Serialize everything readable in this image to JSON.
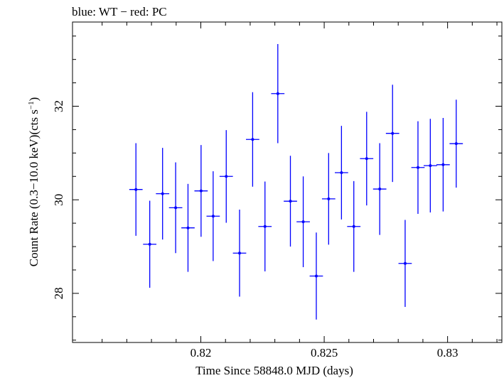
{
  "chart_data": {
    "type": "scatter",
    "title": "blue: WT − red: PC",
    "xlabel": "Time Since 58848.0 MJD (days)",
    "ylabel_main": "Count Rate (0.3−10.0 keV)(cts s",
    "ylabel_sup": "−1",
    "ylabel_end": ")",
    "xlim": [
      0.8148,
      0.8322
    ],
    "ylim": [
      26.95,
      33.8
    ],
    "x_ticks": [
      {
        "value": 0.82,
        "label": "0.82"
      },
      {
        "value": 0.825,
        "label": "0.825"
      },
      {
        "value": 0.83,
        "label": "0.83"
      }
    ],
    "y_ticks": [
      {
        "value": 28,
        "label": "28"
      },
      {
        "value": 30,
        "label": "30"
      },
      {
        "value": 32,
        "label": "32"
      }
    ],
    "series": [
      {
        "color": "#0000ff",
        "x_halfwidth": 0.00027,
        "points": [
          {
            "x": 0.81737,
            "y": 30.22,
            "yerr": 0.99
          },
          {
            "x": 0.81793,
            "y": 29.05,
            "yerr": 0.93
          },
          {
            "x": 0.81845,
            "y": 30.13,
            "yerr": 0.98
          },
          {
            "x": 0.81898,
            "y": 29.83,
            "yerr": 0.97
          },
          {
            "x": 0.81948,
            "y": 29.4,
            "yerr": 0.94
          },
          {
            "x": 0.82001,
            "y": 30.19,
            "yerr": 0.98
          },
          {
            "x": 0.8205,
            "y": 29.65,
            "yerr": 0.96
          },
          {
            "x": 0.82103,
            "y": 30.5,
            "yerr": 0.99
          },
          {
            "x": 0.82157,
            "y": 28.86,
            "yerr": 0.93
          },
          {
            "x": 0.8221,
            "y": 31.29,
            "yerr": 1.01
          },
          {
            "x": 0.8226,
            "y": 29.43,
            "yerr": 0.96
          },
          {
            "x": 0.82312,
            "y": 32.27,
            "yerr": 1.06
          },
          {
            "x": 0.82363,
            "y": 29.97,
            "yerr": 0.97
          },
          {
            "x": 0.82415,
            "y": 29.53,
            "yerr": 0.97
          },
          {
            "x": 0.82468,
            "y": 28.37,
            "yerr": 0.93
          },
          {
            "x": 0.82518,
            "y": 30.02,
            "yerr": 0.98
          },
          {
            "x": 0.8257,
            "y": 30.58,
            "yerr": 1.0
          },
          {
            "x": 0.8262,
            "y": 29.43,
            "yerr": 0.97
          },
          {
            "x": 0.82672,
            "y": 30.88,
            "yerr": 1.0
          },
          {
            "x": 0.82725,
            "y": 30.23,
            "yerr": 0.98
          },
          {
            "x": 0.82777,
            "y": 31.42,
            "yerr": 1.04
          },
          {
            "x": 0.82828,
            "y": 28.64,
            "yerr": 0.93
          },
          {
            "x": 0.8288,
            "y": 30.69,
            "yerr": 0.99
          },
          {
            "x": 0.8293,
            "y": 30.73,
            "yerr": 1.0
          },
          {
            "x": 0.82982,
            "y": 30.75,
            "yerr": 1.0
          },
          {
            "x": 0.83035,
            "y": 31.2,
            "yerr": 0.94
          }
        ]
      }
    ]
  }
}
